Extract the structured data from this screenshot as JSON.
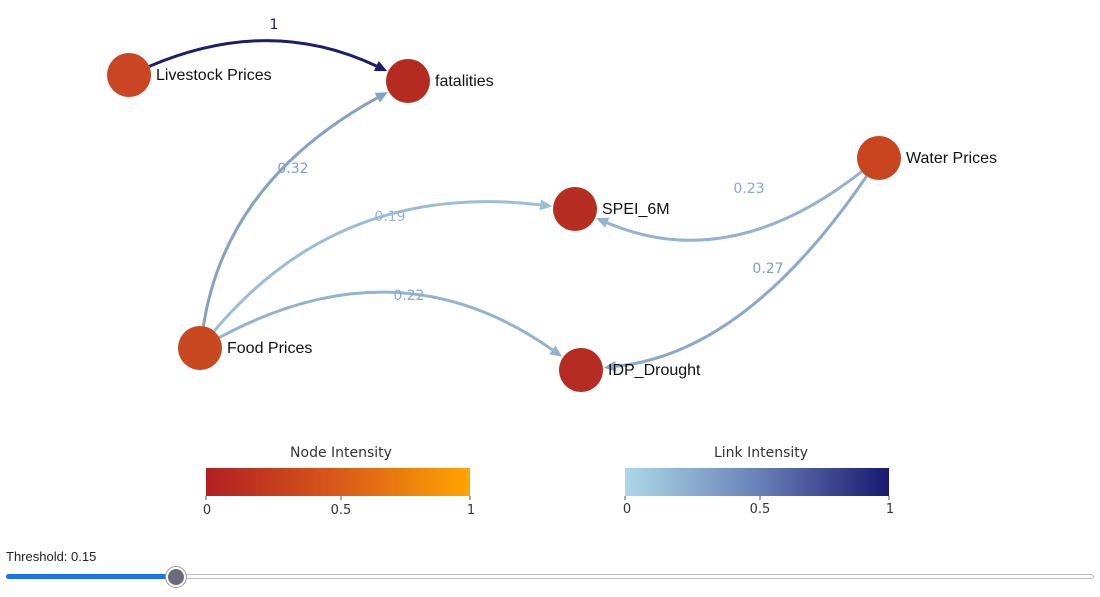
{
  "nodes": [
    {
      "id": "livestock",
      "label": "Livestock Prices",
      "color": "#c94524"
    },
    {
      "id": "fatalities",
      "label": "fatalities",
      "color": "#b62b20"
    },
    {
      "id": "water",
      "label": "Water Prices",
      "color": "#c8451f"
    },
    {
      "id": "spei",
      "label": "SPEI_6M",
      "color": "#b62e22"
    },
    {
      "id": "food",
      "label": "Food Prices",
      "color": "#c8481f"
    },
    {
      "id": "idp",
      "label": "IDP_Drought",
      "color": "#b62b22"
    }
  ],
  "edges": [
    {
      "source": "livestock",
      "target": "fatalities",
      "value": 1,
      "label": "1",
      "color": "#1d1d6e",
      "label_color": "#1d1d6e"
    },
    {
      "source": "food",
      "target": "fatalities",
      "value": 0.32,
      "label": "0.32",
      "color": "#84a2c6",
      "label_color": "#7d9ec6"
    },
    {
      "source": "food",
      "target": "spei",
      "value": 0.19,
      "label": "0.19",
      "color": "#9bbdd6",
      "label_color": "#93b6d4"
    },
    {
      "source": "food",
      "target": "idp",
      "value": 0.22,
      "label": "0.22",
      "color": "#93b3d1",
      "label_color": "#87a9cd"
    },
    {
      "source": "water",
      "target": "spei",
      "value": 0.23,
      "label": "0.23",
      "color": "#93b3d1",
      "label_color": "#87a9cd"
    },
    {
      "source": "water",
      "target": "idp",
      "value": 0.27,
      "label": "0.27",
      "color": "#8ba9cb",
      "label_color": "#7d9ec6"
    }
  ],
  "legends": {
    "node": {
      "title": "Node Intensity",
      "ticks": [
        "0",
        "0.5",
        "1"
      ],
      "color_start": "#b11f22",
      "color_mid": "#d85a18",
      "color_end": "#ffa500"
    },
    "link": {
      "title": "Link Intensity",
      "ticks": [
        "0",
        "0.5",
        "1"
      ],
      "color_start": "#add8e6",
      "color_mid": "#6a82b8",
      "color_end": "#191970"
    }
  },
  "threshold": {
    "label": "Threshold: 0.15",
    "value": 0.15,
    "fill_color": "#1a73e8",
    "thumb_color": "#6b6b7b"
  }
}
